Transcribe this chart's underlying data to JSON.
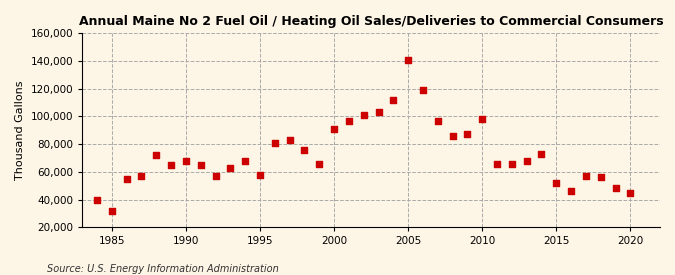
{
  "title": "Annual Maine No 2 Fuel Oil / Heating Oil Sales/Deliveries to Commercial Consumers",
  "ylabel": "Thousand Gallons",
  "source_text": "Source: U.S. Energy Information Administration",
  "background_color": "#fdf5e6",
  "marker_color": "#cc0000",
  "marker_size": 25,
  "years": [
    1984,
    1985,
    1986,
    1987,
    1988,
    1989,
    1990,
    1991,
    1992,
    1993,
    1994,
    1995,
    1996,
    1997,
    1998,
    1999,
    2000,
    2001,
    2002,
    2003,
    2004,
    2005,
    2006,
    2007,
    2008,
    2009,
    2010,
    2011,
    2012,
    2013,
    2014,
    2015,
    2016,
    2017,
    2018,
    2019,
    2020
  ],
  "values": [
    40000,
    32000,
    55000,
    57000,
    72000,
    65000,
    68000,
    65000,
    57000,
    63000,
    68000,
    58000,
    81000,
    83000,
    76000,
    66000,
    91000,
    97000,
    101000,
    103000,
    112000,
    141000,
    119000,
    97000,
    86000,
    87000,
    98000,
    66000,
    66000,
    68000,
    73000,
    52000,
    46000,
    57000,
    56000,
    48000,
    45000
  ],
  "xlim": [
    1983,
    2022
  ],
  "ylim": [
    20000,
    160000
  ],
  "yticks": [
    20000,
    40000,
    60000,
    80000,
    100000,
    120000,
    140000,
    160000
  ],
  "xticks": [
    1985,
    1990,
    1995,
    2000,
    2005,
    2010,
    2015,
    2020
  ],
  "grid_color": "#aaaaaa",
  "grid_linestyle": "--"
}
